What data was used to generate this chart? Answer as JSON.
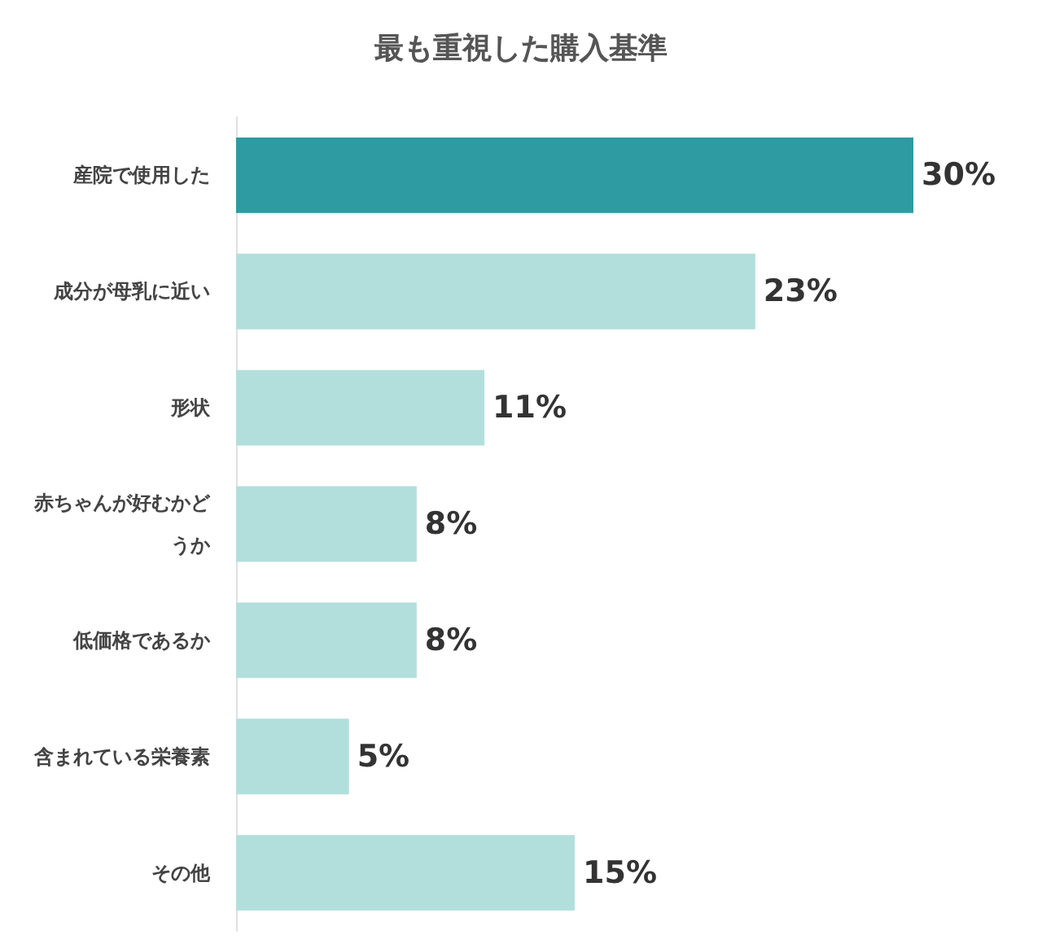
{
  "chart_data": {
    "type": "bar",
    "orientation": "horizontal",
    "title": "最も重視した購入基準",
    "categories": [
      "産院で使用した",
      "成分が母乳に近い",
      "形状",
      "赤ちゃんが好むかどうか",
      "低価格であるか",
      "含まれている栄養素",
      "その他"
    ],
    "values": [
      30,
      23,
      11,
      8,
      8,
      5,
      15
    ],
    "colors": [
      "#2e9aa1",
      "#b2dfdc",
      "#b2dfdc",
      "#b2dfdc",
      "#b2dfdc",
      "#b2dfdc",
      "#b2dfdc"
    ],
    "value_labels": [
      "30%",
      "23%",
      "11%",
      "8%",
      "8%",
      "5%",
      "15%"
    ]
  }
}
